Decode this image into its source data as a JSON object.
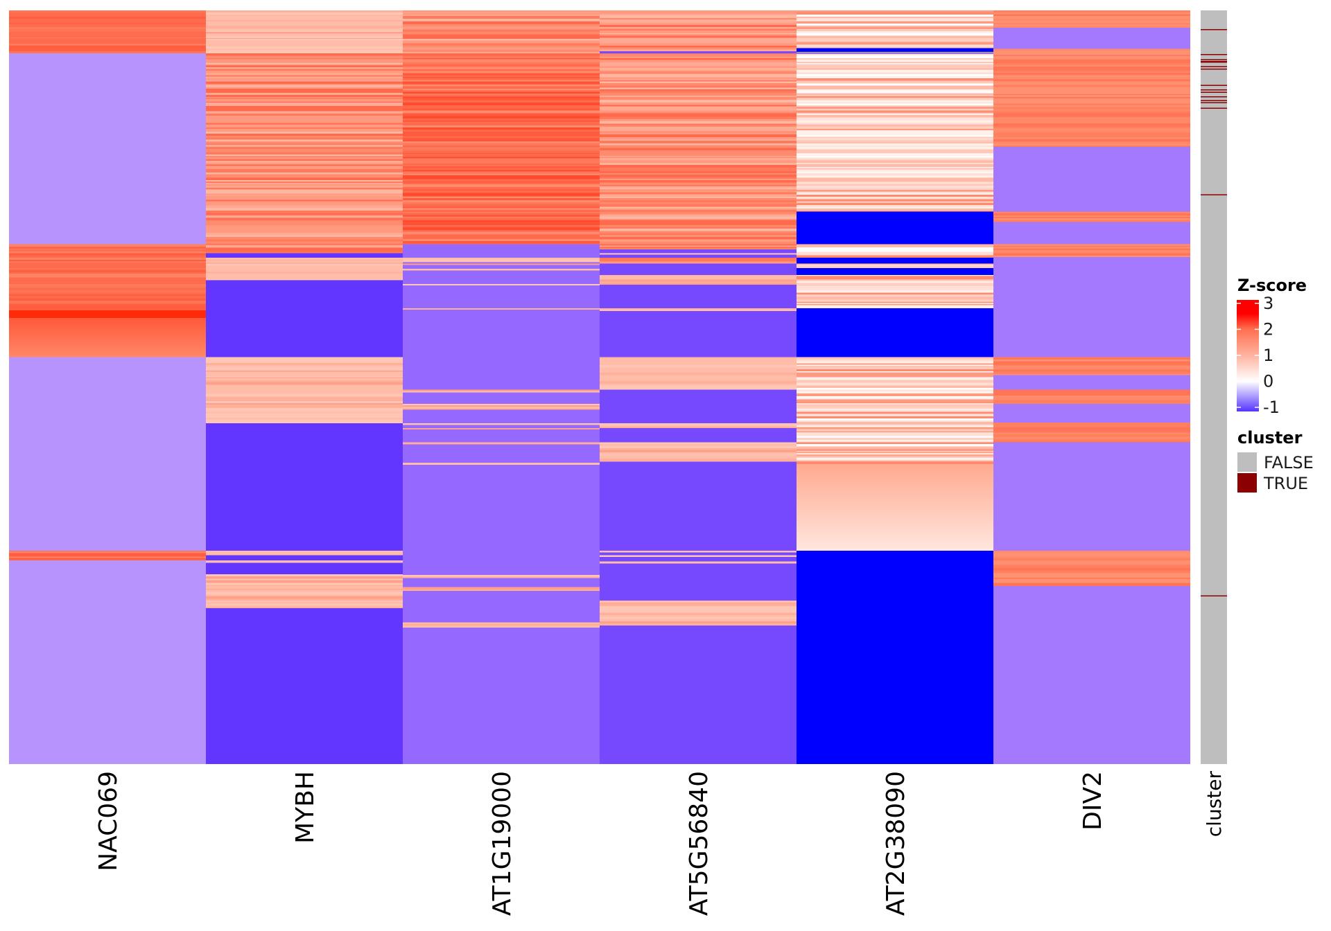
{
  "chart_data": {
    "type": "heatmap",
    "title": "",
    "xlabel": "",
    "ylabel": "",
    "columns": [
      "NAC069",
      "MYBH",
      "AT1G19000",
      "AT5G56840",
      "AT2G38090",
      "DIV2"
    ],
    "annotation_column_label": "cluster",
    "row_units": "fraction of genes (top to bottom, row order)",
    "palettes": {
      "red_bright": [
        "#FF6B4D",
        "#FF6B4D",
        "#FF7656",
        "#FF8262",
        "#FF5F40",
        "#FF6B4D",
        "#FF1A00"
      ],
      "red_deep": [
        "#FF5A3C",
        "#FF6A4D",
        "#FF7A5C",
        "#FF4A2E",
        "#FF8B6E",
        "#FF6A4D"
      ],
      "red_mid": [
        "#FF7A5C",
        "#FF8B6E",
        "#FF9A80",
        "#FFA892",
        "#FF6A4D",
        "#FFB7A2"
      ],
      "salmon_light": [
        "#FFBCA8",
        "#FFC6B5",
        "#FFB09A",
        "#FFA08A",
        "#FFC6B5",
        "#FFBCA8"
      ],
      "pale": [
        "#FFE0D6",
        "#FFD0C2",
        "#FFF0EA",
        "#FFB9A6",
        "#FF9A80",
        "#FFFFFF",
        "#FFC8B8",
        "#FF8A6E"
      ],
      "div2_red": [
        "#FF7F5E",
        "#FF8A6B",
        "#FF7556",
        "#FF9172"
      ],
      "gradient_pale": [
        "#FFAA90",
        "#FFE6DE"
      ]
    },
    "segments": {
      "NAC069": [
        [
          0.0,
          0.057,
          "red_bright"
        ],
        [
          0.057,
          0.31,
          "#B794FD"
        ],
        [
          0.31,
          0.46,
          "red_bright"
        ],
        [
          0.46,
          0.717,
          "#B794FD"
        ],
        [
          0.717,
          0.73,
          "red_bright"
        ],
        [
          0.73,
          1.0,
          "#B794FD"
        ]
      ],
      "MYBH": [
        [
          0.0,
          0.057,
          "salmon_light"
        ],
        [
          0.057,
          0.322,
          "red_mid"
        ],
        [
          0.322,
          0.328,
          "#6236FF"
        ],
        [
          0.328,
          0.358,
          "salmon_light"
        ],
        [
          0.358,
          0.46,
          "#6236FF"
        ],
        [
          0.46,
          0.548,
          "salmon_light"
        ],
        [
          0.548,
          0.717,
          "#6236FF"
        ],
        [
          0.717,
          0.723,
          "salmon_light"
        ],
        [
          0.723,
          0.73,
          "#6236FF"
        ],
        [
          0.73,
          0.733,
          "salmon_light"
        ],
        [
          0.733,
          0.748,
          "#6236FF"
        ],
        [
          0.748,
          0.793,
          "salmon_light"
        ],
        [
          0.793,
          1.0,
          "#6236FF"
        ]
      ],
      "AT1G19000": [
        [
          0.0,
          0.057,
          "red_mid"
        ],
        [
          0.057,
          0.31,
          "red_deep"
        ],
        [
          0.31,
          0.328,
          "#9669FE"
        ],
        [
          0.328,
          0.334,
          "salmon_light"
        ],
        [
          0.334,
          0.336,
          "#9669FE"
        ],
        [
          0.336,
          0.338,
          "salmon_light"
        ],
        [
          0.338,
          0.343,
          "#9669FE"
        ],
        [
          0.343,
          0.345,
          "salmon_light"
        ],
        [
          0.345,
          0.363,
          "#9669FE"
        ],
        [
          0.363,
          0.365,
          "salmon_light"
        ],
        [
          0.365,
          0.395,
          "#9669FE"
        ],
        [
          0.395,
          0.397,
          "salmon_light"
        ],
        [
          0.397,
          0.503,
          "#9669FE"
        ],
        [
          0.503,
          0.507,
          "salmon_light"
        ],
        [
          0.507,
          0.522,
          "#9669FE"
        ],
        [
          0.522,
          0.53,
          "salmon_light"
        ],
        [
          0.53,
          0.548,
          "#9669FE"
        ],
        [
          0.548,
          0.55,
          "salmon_light"
        ],
        [
          0.55,
          0.554,
          "#9669FE"
        ],
        [
          0.554,
          0.556,
          "salmon_light"
        ],
        [
          0.556,
          0.573,
          "#9669FE"
        ],
        [
          0.573,
          0.576,
          "salmon_light"
        ],
        [
          0.576,
          0.6,
          "#9669FE"
        ],
        [
          0.6,
          0.603,
          "salmon_light"
        ],
        [
          0.603,
          0.749,
          "#9669FE"
        ],
        [
          0.749,
          0.753,
          "salmon_light"
        ],
        [
          0.753,
          0.765,
          "#9669FE"
        ],
        [
          0.765,
          0.77,
          "salmon_light"
        ],
        [
          0.77,
          0.812,
          "#9669FE"
        ],
        [
          0.812,
          0.819,
          "salmon_light"
        ],
        [
          0.819,
          1.0,
          "#9669FE"
        ]
      ],
      "AT5G56840": [
        [
          0.0,
          0.054,
          "red_mid"
        ],
        [
          0.054,
          0.057,
          "#7649FE"
        ],
        [
          0.057,
          0.317,
          "red_mid"
        ],
        [
          0.317,
          0.322,
          "#7649FE"
        ],
        [
          0.322,
          0.324,
          "salmon_light"
        ],
        [
          0.324,
          0.328,
          "#7649FE"
        ],
        [
          0.328,
          0.336,
          "red_mid"
        ],
        [
          0.336,
          0.351,
          "#7649FE"
        ],
        [
          0.351,
          0.364,
          "salmon_light"
        ],
        [
          0.364,
          0.395,
          "#7649FE"
        ],
        [
          0.395,
          0.399,
          "salmon_light"
        ],
        [
          0.399,
          0.46,
          "#7649FE"
        ],
        [
          0.46,
          0.503,
          "salmon_light"
        ],
        [
          0.503,
          0.548,
          "#7649FE"
        ],
        [
          0.548,
          0.554,
          "salmon_light"
        ],
        [
          0.554,
          0.573,
          "#7649FE"
        ],
        [
          0.573,
          0.599,
          "salmon_light"
        ],
        [
          0.599,
          0.717,
          "#7649FE"
        ],
        [
          0.717,
          0.719,
          "salmon_light"
        ],
        [
          0.719,
          0.723,
          "#7649FE"
        ],
        [
          0.723,
          0.725,
          "salmon_light"
        ],
        [
          0.725,
          0.731,
          "#7649FE"
        ],
        [
          0.731,
          0.734,
          "salmon_light"
        ],
        [
          0.734,
          0.783,
          "#7649FE"
        ],
        [
          0.783,
          0.816,
          "salmon_light"
        ],
        [
          0.816,
          1.0,
          "#7649FE"
        ]
      ],
      "AT2G38090": [
        [
          0.0,
          0.05,
          "pale"
        ],
        [
          0.05,
          0.055,
          "#0000FF"
        ],
        [
          0.055,
          0.056,
          "#FFFFFF"
        ],
        [
          0.056,
          0.057,
          "#0000FF"
        ],
        [
          0.057,
          0.267,
          "pale"
        ],
        [
          0.267,
          0.31,
          "#0000FF"
        ],
        [
          0.31,
          0.328,
          "pale"
        ],
        [
          0.328,
          0.336,
          "#0000FF"
        ],
        [
          0.336,
          0.342,
          "pale"
        ],
        [
          0.342,
          0.351,
          "#0000FF"
        ],
        [
          0.351,
          0.395,
          "pale"
        ],
        [
          0.395,
          0.46,
          "#0000FF"
        ],
        [
          0.46,
          0.602,
          "pale"
        ],
        [
          0.602,
          0.717,
          "gradient_pale"
        ],
        [
          0.717,
          1.0,
          "#0000FF"
        ]
      ],
      "DIV2": [
        [
          0.0,
          0.023,
          "div2_red"
        ],
        [
          0.023,
          0.051,
          "#A479FE"
        ],
        [
          0.051,
          0.181,
          "div2_red"
        ],
        [
          0.181,
          0.267,
          "#A479FE"
        ],
        [
          0.267,
          0.281,
          "div2_red"
        ],
        [
          0.281,
          0.31,
          "#A479FE"
        ],
        [
          0.31,
          0.327,
          "div2_red"
        ],
        [
          0.327,
          0.46,
          "#A479FE"
        ],
        [
          0.46,
          0.484,
          "div2_red"
        ],
        [
          0.484,
          0.503,
          "#A479FE"
        ],
        [
          0.503,
          0.522,
          "div2_red"
        ],
        [
          0.522,
          0.547,
          "#A479FE"
        ],
        [
          0.547,
          0.573,
          "div2_red"
        ],
        [
          0.573,
          0.717,
          "#A479FE"
        ],
        [
          0.717,
          0.764,
          "div2_red"
        ],
        [
          0.764,
          1.0,
          "#A479FE"
        ]
      ]
    },
    "cluster": {
      "false_color": "#BEBEBE",
      "true_color": "#8B0000",
      "true_rows": [
        0.025,
        0.058,
        0.065,
        0.067,
        0.068,
        0.074,
        0.077,
        0.099,
        0.105,
        0.108,
        0.114,
        0.119,
        0.122,
        0.129,
        0.244,
        0.776
      ]
    },
    "legend": {
      "zscore": {
        "title": "Z-score",
        "range": [
          -1.16,
          3.13
        ],
        "ticks": [
          3,
          2,
          1,
          0,
          -1
        ],
        "tick_labels": [
          "3",
          "2",
          "1",
          "0",
          "-1"
        ],
        "stops": [
          {
            "z": -1.16,
            "color": "#5533FF"
          },
          {
            "z": 0,
            "color": "#FFFFFF"
          },
          {
            "z": 1,
            "color": "#FFB3A0"
          },
          {
            "z": 2,
            "color": "#FF7050"
          },
          {
            "z": 2.6,
            "color": "#FF0000"
          },
          {
            "z": 3.13,
            "color": "#FF0000"
          }
        ]
      },
      "cluster": {
        "title": "cluster",
        "items": [
          {
            "label": "FALSE",
            "color": "#BEBEBE"
          },
          {
            "label": "TRUE",
            "color": "#8B0000"
          }
        ]
      }
    }
  }
}
